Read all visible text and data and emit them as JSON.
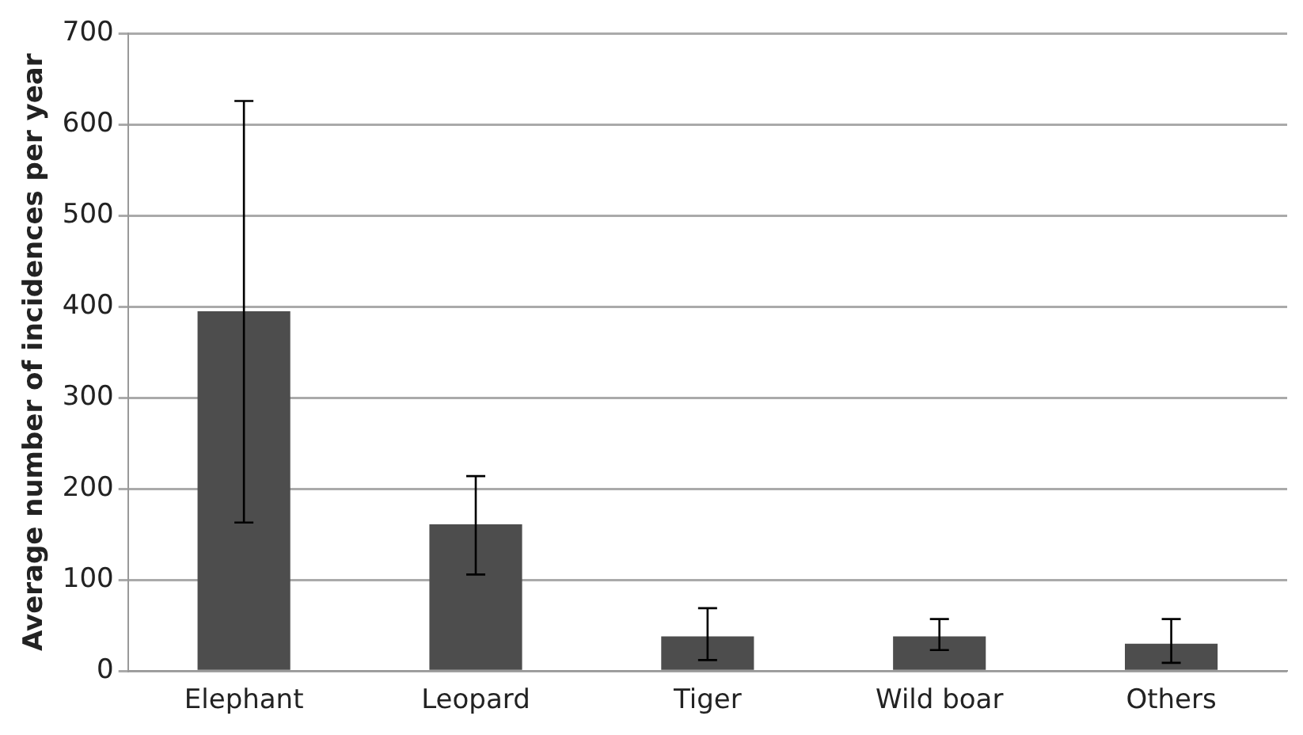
{
  "chart_data": {
    "type": "bar",
    "ylabel": "Average number of incidences per year",
    "categories": [
      "Elephant",
      "Leopard",
      "Tiger",
      "Wild boar",
      "Others"
    ],
    "values": [
      395,
      161,
      38,
      38,
      30
    ],
    "errors": [
      [
        163,
        626
      ],
      [
        106,
        214
      ],
      [
        12,
        69
      ],
      [
        23,
        57
      ],
      [
        9,
        57
      ]
    ],
    "color": "#4d4d4d",
    "ylim": [
      0,
      700
    ],
    "yticks": [
      0,
      100,
      200,
      300,
      400,
      500,
      600,
      700
    ],
    "grid": "y",
    "legend": false
  }
}
